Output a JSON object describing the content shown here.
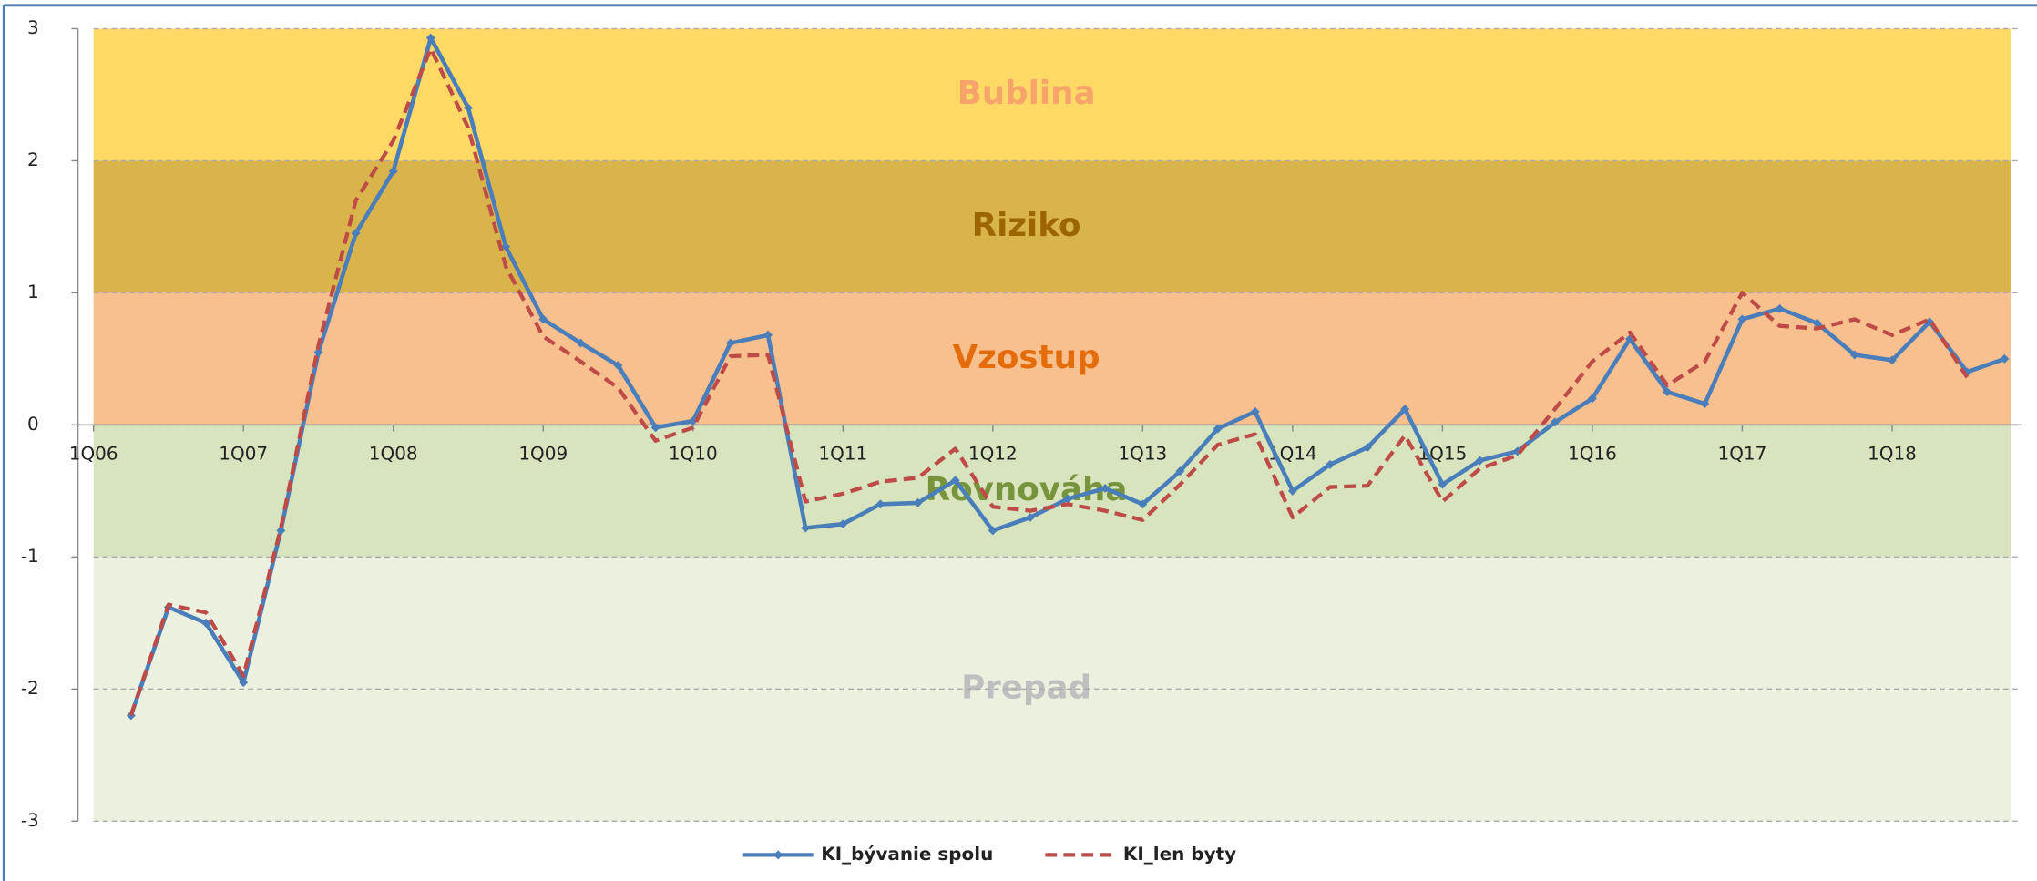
{
  "chart_data": {
    "type": "line",
    "categories": [
      "1Q06",
      null,
      null,
      null,
      "1Q07",
      null,
      null,
      null,
      "1Q08",
      null,
      null,
      null,
      "1Q09",
      null,
      null,
      null,
      "1Q10",
      null,
      null,
      null,
      "1Q11",
      null,
      null,
      null,
      "1Q12",
      null,
      null,
      null,
      "1Q13",
      null,
      null,
      null,
      "1Q14",
      null,
      null,
      null,
      "1Q15",
      null,
      null,
      null,
      "1Q16",
      null,
      null,
      null,
      "1Q17",
      null,
      null,
      null,
      "1Q18",
      null,
      null,
      null
    ],
    "series": [
      {
        "name": "KI_bývanie spolu",
        "color": "#4a7ebb",
        "dash": false,
        "markers": true,
        "values": [
          null,
          -2.2,
          -1.38,
          -1.5,
          -1.95,
          -0.8,
          0.55,
          1.45,
          1.92,
          2.93,
          2.4,
          1.35,
          0.8,
          0.62,
          0.45,
          -0.02,
          0.03,
          0.62,
          0.68,
          -0.78,
          -0.75,
          -0.6,
          -0.59,
          -0.42,
          -0.8,
          -0.7,
          -0.56,
          -0.48,
          -0.6,
          -0.35,
          -0.03,
          0.1,
          -0.5,
          -0.3,
          -0.17,
          0.12,
          -0.45,
          -0.27,
          -0.2,
          0.02,
          0.2,
          0.65,
          0.25,
          0.16,
          0.8,
          0.88,
          0.77,
          0.53,
          0.49,
          0.78,
          0.4,
          0.5
        ]
      },
      {
        "name": "KI_len byty",
        "color": "#be4b48",
        "dash": true,
        "markers": false,
        "values": [
          null,
          -2.2,
          -1.36,
          -1.42,
          -1.9,
          -0.78,
          0.6,
          1.7,
          2.15,
          2.85,
          2.25,
          1.2,
          0.67,
          0.48,
          0.28,
          -0.12,
          -0.02,
          0.52,
          0.53,
          -0.58,
          -0.52,
          -0.43,
          -0.4,
          -0.18,
          -0.62,
          -0.65,
          -0.6,
          -0.65,
          -0.72,
          -0.45,
          -0.15,
          -0.07,
          -0.7,
          -0.47,
          -0.46,
          -0.08,
          -0.58,
          -0.33,
          -0.23,
          0.12,
          0.48,
          0.7,
          0.3,
          0.48,
          1.0,
          0.75,
          0.73,
          0.8,
          0.68,
          0.8,
          0.36,
          null
        ]
      }
    ],
    "zones": [
      {
        "label": "Bublina",
        "from": 2,
        "to": 3,
        "color": "#ffd966",
        "label_color": "#f7a46b"
      },
      {
        "label": "Riziko",
        "from": 1,
        "to": 2,
        "color": "#d9b44a",
        "label_color": "#9c6500"
      },
      {
        "label": "Vzostup",
        "from": 0,
        "to": 1,
        "color": "#f9c08f",
        "label_color": "#e46c0a"
      },
      {
        "label": "Rovnováha",
        "from": -1,
        "to": 0,
        "color": "#d7e4bd",
        "label_color": "#77933c"
      },
      {
        "label": "Prepad",
        "from": -3,
        "to": -1,
        "color": "#ebf1de",
        "label_color": "#bfbfbf"
      }
    ],
    "ylim": [
      -3,
      3
    ],
    "yticks": [
      -3,
      -2,
      -1,
      0,
      1,
      2,
      3
    ],
    "grid": true,
    "legend": "bottom"
  }
}
